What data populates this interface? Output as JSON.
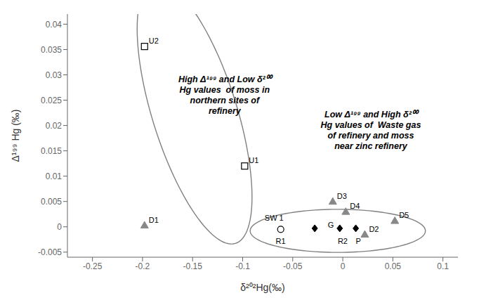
{
  "chart_data": {
    "type": "scatter",
    "xlabel": "δ²⁰²Hg(‰)",
    "ylabel": "Δ¹⁹⁹ Hg (‰)",
    "xlim": [
      -0.275,
      0.115
    ],
    "ylim": [
      -0.006,
      0.042
    ],
    "xticks": [
      -0.25,
      -0.2,
      -0.15,
      -0.1,
      -0.05,
      0,
      0.05,
      0.1
    ],
    "yticks": [
      -0.005,
      0,
      0.005,
      0.01,
      0.015,
      0.02,
      0.025,
      0.03,
      0.035,
      0.04
    ],
    "series": [
      {
        "marker": "square_open",
        "color": "#000000",
        "x": [
          -0.198,
          -0.098
        ],
        "values": [
          0.0356,
          0.012
        ],
        "labels": [
          "U2",
          "U1"
        ]
      },
      {
        "marker": "triangle",
        "color": "#888888",
        "x": [
          -0.198,
          -0.01,
          0.003,
          0.022,
          0.052
        ],
        "values": [
          0.0003,
          0.005,
          0.003,
          -0.0015,
          0.0012
        ],
        "labels": [
          "D1",
          "D3",
          "D4",
          "D2",
          "D5"
        ]
      },
      {
        "marker": "circle_open",
        "color": "#000000",
        "x": [
          -0.062
        ],
        "values": [
          -0.0005
        ]
      },
      {
        "marker": "diamond",
        "color": "#000000",
        "x": [
          -0.028,
          -0.003,
          0.013
        ],
        "values": [
          -0.0003,
          -0.0003,
          -0.0003
        ]
      }
    ],
    "point_labels": [
      {
        "text": "SW 1",
        "x": -0.078,
        "y": 0.0012
      },
      {
        "text": "R1",
        "x": -0.067,
        "y": -0.0033
      },
      {
        "text": "G",
        "x": -0.015,
        "y": -0.0002
      },
      {
        "text": "R2",
        "x": -0.005,
        "y": -0.0033
      },
      {
        "text": "P",
        "x": 0.013,
        "y": -0.0033
      }
    ],
    "ellipses": [
      {
        "x_center": -0.148,
        "y_center": 0.0225,
        "width": 0.12,
        "height": 0.038,
        "angle": -18,
        "color": "#808080"
      },
      {
        "x_center": -0.005,
        "y_center": -0.0008,
        "width": 0.175,
        "height": 0.0085,
        "angle": 0,
        "color": "#808080"
      }
    ],
    "annotations": [
      {
        "text": "High Δ¹⁹⁹ and Low δ²⁰⁰\nHg values  of moss in\nnorthern sites of\nrefinery",
        "x": -0.118,
        "y": 0.026
      },
      {
        "text": "Low Δ¹⁹⁹ and High δ²⁰⁰\nHg values of  Waste gas\nof refinery and moss\nnear zinc refinery",
        "x": 0.028,
        "y": 0.019
      }
    ]
  }
}
